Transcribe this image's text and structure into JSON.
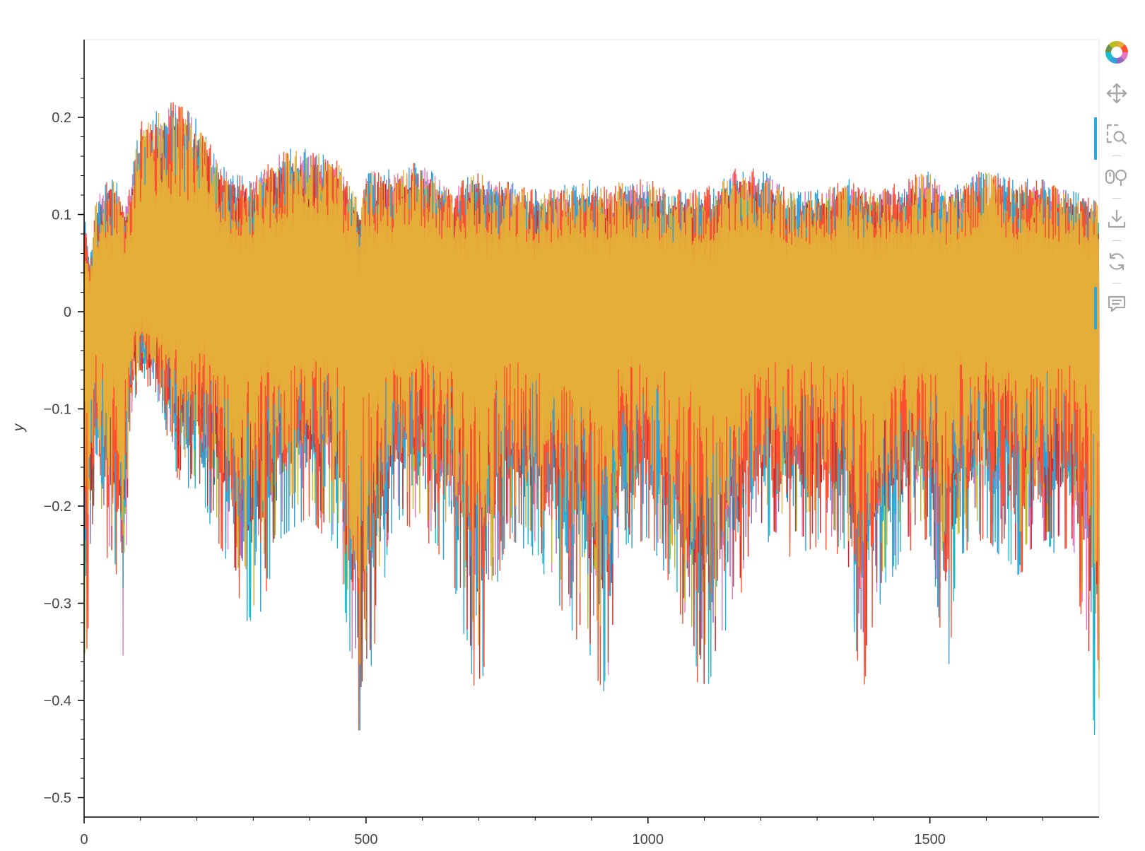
{
  "chart_data": {
    "type": "line",
    "title": "",
    "xlabel": "",
    "ylabel": "y",
    "xlim": [
      0,
      1800
    ],
    "ylim": [
      -0.52,
      0.28
    ],
    "x_ticks": [
      0,
      500,
      1000,
      1500
    ],
    "x_tick_labels": [
      "0",
      "500",
      "1000",
      "1500"
    ],
    "y_ticks": [
      0.2,
      0.1,
      0,
      -0.1,
      -0.2,
      -0.3,
      -0.4,
      -0.5
    ],
    "y_tick_labels": [
      "0.2",
      "0.1",
      "0",
      "−0.1",
      "−0.2",
      "−0.3",
      "−0.4",
      "−0.5"
    ],
    "grid": false,
    "legend": "none",
    "n_points": 1800,
    "series": [
      {
        "color": "#1f77b4",
        "upper": 0.12,
        "lower": -0.2
      },
      {
        "color": "#9467bd",
        "upper": 0.13,
        "lower": -0.22
      },
      {
        "color": "#e377c2",
        "upper": 0.14,
        "lower": -0.25
      },
      {
        "color": "#bcbd22",
        "upper": 0.13,
        "lower": -0.24
      },
      {
        "color": "#17becf",
        "upper": 0.13,
        "lower": -0.26
      },
      {
        "color": "#8c564b",
        "upper": 0.13,
        "lower": -0.24
      },
      {
        "color": "#d62728",
        "upper": 0.13,
        "lower": -0.25
      },
      {
        "color": "#30a2da",
        "upper": 0.15,
        "lower": -0.28
      },
      {
        "color": "#fc4f30",
        "upper": 0.15,
        "lower": -0.3
      },
      {
        "color": "#e5ae38",
        "upper": 0.14,
        "lower": -0.22
      }
    ],
    "envelope": {
      "x": [
        0,
        10,
        20,
        40,
        60,
        70,
        80,
        100,
        140,
        160,
        200,
        250,
        300,
        350,
        400,
        450,
        485,
        490,
        500,
        550,
        600,
        650,
        700,
        720,
        750,
        800,
        900,
        930,
        950,
        1000,
        1050,
        1100,
        1150,
        1200,
        1250,
        1300,
        1350,
        1380,
        1400,
        1450,
        1500,
        1530,
        1550,
        1600,
        1650,
        1700,
        1750,
        1780,
        1795,
        1800
      ],
      "upper": [
        0.1,
        0.05,
        0.11,
        0.13,
        0.13,
        0.1,
        0.12,
        0.19,
        0.2,
        0.21,
        0.19,
        0.14,
        0.13,
        0.16,
        0.16,
        0.15,
        0.11,
        0.1,
        0.14,
        0.14,
        0.15,
        0.12,
        0.14,
        0.13,
        0.13,
        0.12,
        0.13,
        0.12,
        0.13,
        0.13,
        0.12,
        0.12,
        0.14,
        0.14,
        0.12,
        0.12,
        0.13,
        0.13,
        0.12,
        0.13,
        0.14,
        0.12,
        0.13,
        0.14,
        0.13,
        0.13,
        0.12,
        0.12,
        0.11,
        0.1
      ],
      "lower": [
        -0.38,
        -0.28,
        -0.18,
        -0.24,
        -0.26,
        -0.37,
        -0.12,
        -0.06,
        -0.1,
        -0.16,
        -0.18,
        -0.24,
        -0.32,
        -0.22,
        -0.2,
        -0.24,
        -0.41,
        -0.41,
        -0.38,
        -0.2,
        -0.22,
        -0.25,
        -0.39,
        -0.3,
        -0.22,
        -0.24,
        -0.35,
        -0.38,
        -0.24,
        -0.22,
        -0.28,
        -0.39,
        -0.3,
        -0.22,
        -0.24,
        -0.23,
        -0.24,
        -0.38,
        -0.3,
        -0.24,
        -0.22,
        -0.37,
        -0.24,
        -0.22,
        -0.26,
        -0.24,
        -0.23,
        -0.34,
        -0.45,
        -0.45
      ]
    }
  },
  "toolbar": {
    "tools": [
      {
        "name": "bokeh-logo-icon",
        "interactable": true
      },
      {
        "name": "pan-tool-icon",
        "interactable": true
      },
      {
        "name": "box-zoom-tool-icon",
        "interactable": true,
        "active": true
      },
      {
        "name": "wheel-zoom-tool-icon",
        "interactable": true
      },
      {
        "name": "save-tool-icon",
        "interactable": true
      },
      {
        "name": "reset-tool-icon",
        "interactable": true
      },
      {
        "name": "hover-tool-icon",
        "interactable": true,
        "active": true
      }
    ]
  }
}
